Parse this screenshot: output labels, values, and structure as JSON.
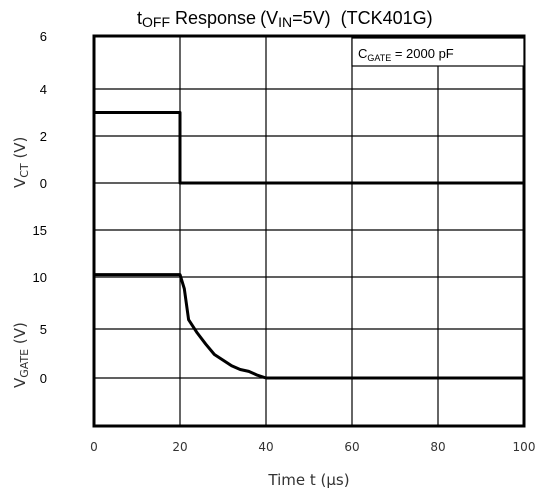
{
  "chart_data": {
    "type": "line",
    "title": {
      "main_prefix": "t",
      "main_sub": "OFF",
      "main_suffix": " Response",
      "cond_prefix": "(V",
      "cond_sub": "IN",
      "cond_suffix": "=5V)",
      "part": "(TCK401G)"
    },
    "xlabel": "Time  t (µs)",
    "xlim": [
      0,
      100
    ],
    "x_ticks": [
      "0",
      "20",
      "40",
      "60",
      "80",
      "100"
    ],
    "grid": true,
    "legend": {
      "placement": "top-right",
      "text_main": "C",
      "text_sub": "GATE",
      "text_value": " = 2000 pF"
    },
    "panels": [
      {
        "ylabel_main": "V",
        "ylabel_sub": "CT",
        "ylabel_unit": " (V)",
        "y_ticks": [
          "6",
          "4",
          "2",
          "0"
        ],
        "series": [
          {
            "x": [
              0,
              20,
              20,
              100
            ],
            "y": [
              3,
              3,
              0,
              0
            ]
          }
        ]
      },
      {
        "ylabel_main": "V",
        "ylabel_sub": "GATE",
        "ylabel_unit": " (V)",
        "y_ticks": [
          "15",
          "10",
          "5",
          "0"
        ],
        "series": [
          {
            "x": [
              0,
              20,
              21,
              22,
              24,
              26,
              28,
              30,
              32,
              34,
              36,
              38,
              40,
              100
            ],
            "y": [
              11,
              11,
              9.5,
              6.2,
              4.8,
              3.6,
              2.5,
              1.9,
              1.3,
              0.9,
              0.7,
              0.3,
              0,
              0
            ]
          }
        ]
      }
    ]
  }
}
